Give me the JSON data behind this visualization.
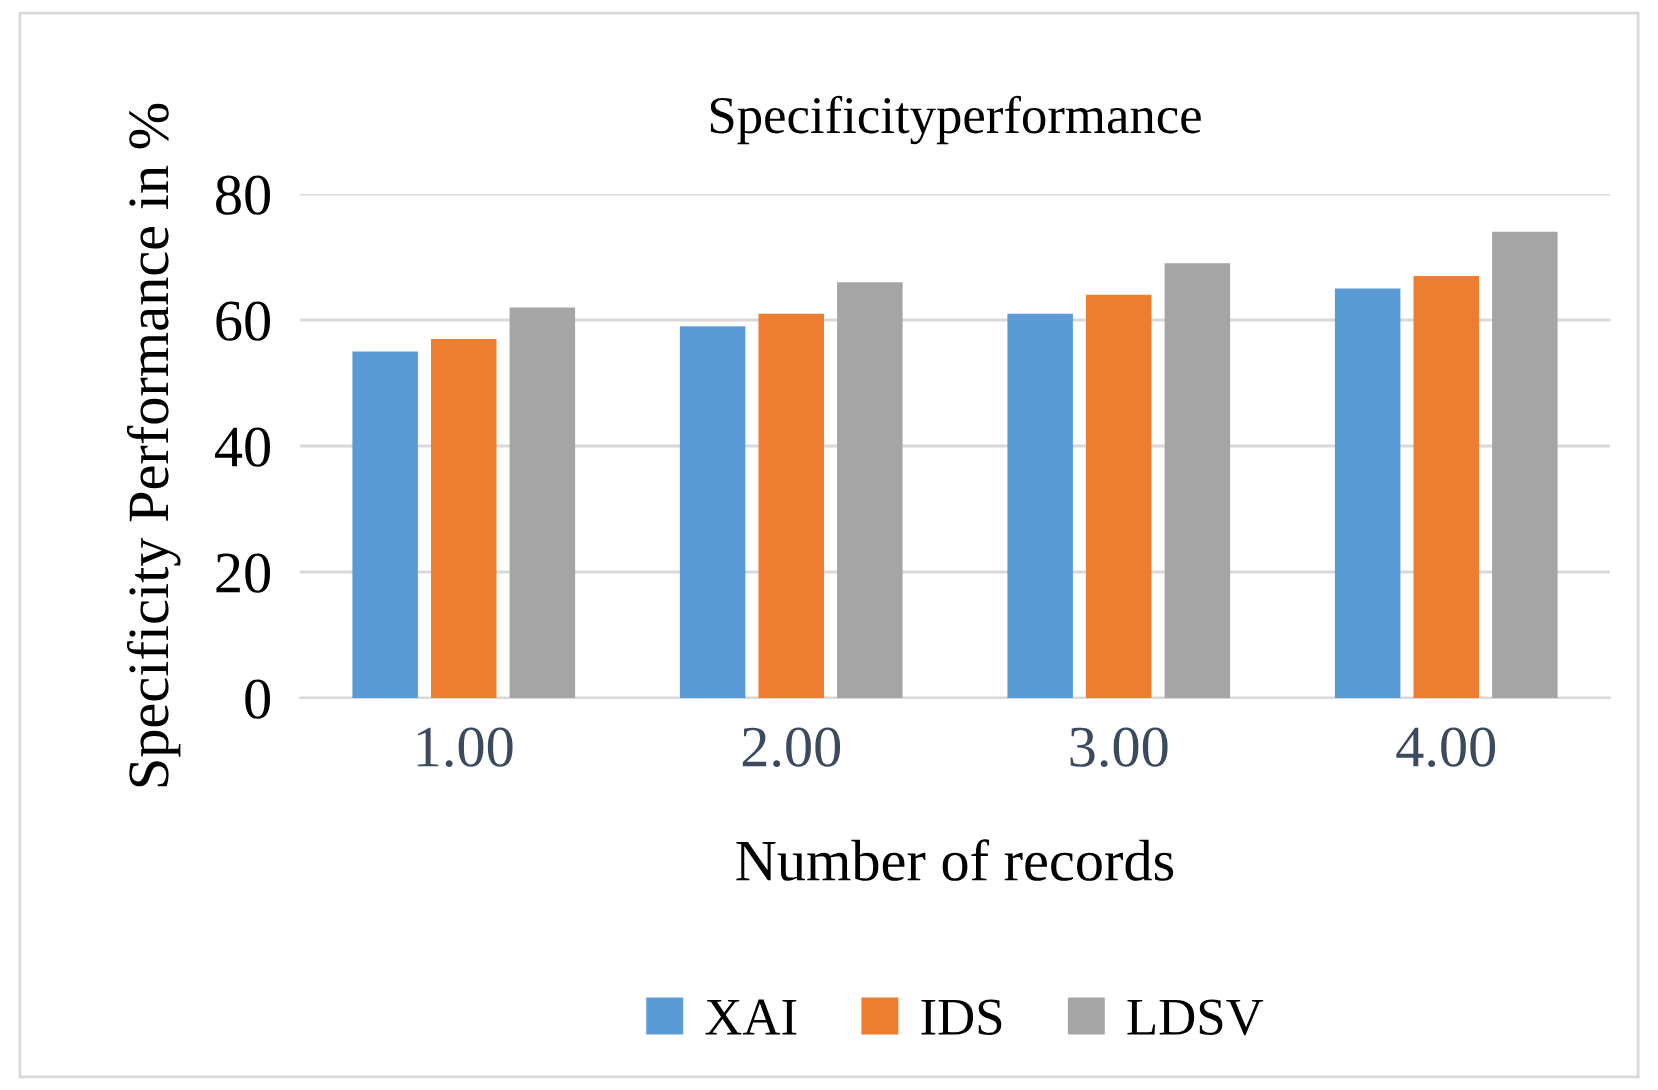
{
  "chart_data": {
    "type": "bar",
    "title": "Specificityperformance",
    "xlabel": "Number of records",
    "ylabel": "Specificity Performance in %",
    "categories": [
      "1.00",
      "2.00",
      "3.00",
      "4.00"
    ],
    "series": [
      {
        "name": "XAI",
        "color": "#5b9bd5",
        "values": [
          55,
          59,
          61,
          65
        ]
      },
      {
        "name": "IDS",
        "color": "#ed7d31",
        "values": [
          57,
          61,
          64,
          67
        ]
      },
      {
        "name": "LDSV",
        "color": "#a5a5a5",
        "values": [
          62,
          66,
          69,
          74
        ]
      }
    ],
    "ylim": [
      0,
      80
    ],
    "yticks": [
      0,
      20,
      40,
      60,
      80
    ],
    "grid": "y",
    "legend": "bottom"
  }
}
